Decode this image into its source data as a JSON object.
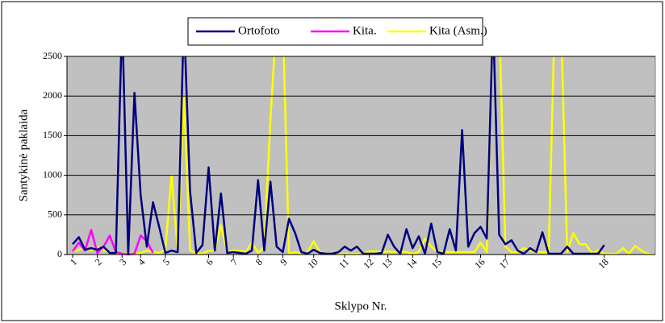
{
  "chart_data": {
    "type": "line",
    "y_label": "Santykinė paklaida",
    "x_label": "Sklypo Nr.",
    "ylim": [
      0,
      2500
    ],
    "yticks": [
      0,
      500,
      1000,
      1500,
      2000,
      2500
    ],
    "grid": true,
    "legend": "top",
    "categories": [
      "1",
      null,
      null,
      null,
      "2",
      null,
      null,
      null,
      "3",
      null,
      null,
      "4",
      null,
      null,
      null,
      "5",
      null,
      null,
      null,
      null,
      null,
      null,
      "6",
      null,
      null,
      null,
      "7",
      null,
      null,
      null,
      "8",
      null,
      null,
      null,
      "9",
      null,
      null,
      null,
      null,
      "10",
      null,
      null,
      null,
      null,
      "11",
      null,
      null,
      null,
      "12",
      null,
      null,
      "13",
      null,
      null,
      null,
      "14",
      null,
      null,
      null,
      "15",
      null,
      null,
      null,
      null,
      null,
      null,
      "16",
      null,
      null,
      null,
      "17",
      null,
      null,
      null,
      null,
      null,
      null,
      null,
      null,
      null,
      null,
      null,
      null,
      null,
      null,
      null,
      "18",
      null,
      null,
      null,
      null,
      null,
      null,
      null,
      null
    ],
    "series": [
      {
        "name": "Ortofoto",
        "color": "#000080",
        "values": [
          130,
          220,
          60,
          80,
          60,
          100,
          20,
          20,
          3000,
          0,
          2040,
          750,
          100,
          660,
          350,
          20,
          50,
          30,
          3000,
          800,
          20,
          120,
          1100,
          50,
          770,
          20,
          30,
          20,
          10,
          50,
          940,
          50,
          920,
          100,
          30,
          450,
          270,
          30,
          10,
          60,
          20,
          10,
          10,
          30,
          100,
          50,
          100,
          10,
          10,
          10,
          20,
          250,
          100,
          10,
          320,
          80,
          230,
          10,
          390,
          30,
          10,
          320,
          50,
          1570,
          100,
          270,
          350,
          200,
          3000,
          250,
          130,
          180,
          50,
          10,
          80,
          30,
          280,
          10,
          10,
          10,
          100,
          10,
          10,
          10,
          10,
          10,
          120,
          null,
          null,
          null,
          null,
          null,
          null,
          null,
          null
        ]
      },
      {
        "name": "Kita.",
        "color": "#ff00ff",
        "values": [
          40,
          150,
          50,
          310,
          20,
          100,
          240,
          30,
          10,
          0,
          10,
          240,
          170,
          20,
          null,
          null,
          null,
          null,
          null,
          null,
          null,
          null,
          null,
          null,
          null,
          null,
          null,
          null,
          null,
          null,
          null,
          null,
          null,
          null,
          null,
          null,
          null,
          null,
          null,
          null,
          null,
          null,
          null,
          null,
          null,
          null,
          null,
          null,
          null,
          null,
          null,
          null,
          null,
          null,
          null,
          null,
          null,
          null,
          null,
          null,
          null,
          null,
          null,
          null,
          null,
          null,
          null,
          null,
          null,
          null,
          null,
          null,
          null,
          null,
          null,
          null,
          null,
          null,
          null,
          null,
          null,
          null,
          null,
          null,
          null,
          null,
          null,
          null,
          null,
          null,
          null,
          null,
          null,
          null,
          null
        ]
      },
      {
        "name": "Kita (Asm.)",
        "color": "#ffff00",
        "values": [
          40,
          60,
          80,
          50,
          100,
          50,
          30,
          20,
          10,
          10,
          10,
          20,
          50,
          30,
          20,
          60,
          1000,
          50,
          2000,
          50,
          20,
          10,
          50,
          50,
          370,
          30,
          50,
          50,
          30,
          150,
          20,
          100,
          1700,
          3000,
          3000,
          10,
          30,
          10,
          30,
          170,
          30,
          10,
          10,
          10,
          10,
          10,
          10,
          10,
          40,
          40,
          30,
          40,
          30,
          40,
          30,
          10,
          30,
          200,
          100,
          30,
          30,
          30,
          30,
          30,
          30,
          30,
          150,
          30,
          3000,
          3000,
          100,
          30,
          30,
          80,
          50,
          30,
          30,
          30,
          3000,
          3000,
          30,
          270,
          130,
          130,
          20,
          50,
          10,
          10,
          10,
          80,
          10,
          110,
          50,
          10,
          0
        ]
      }
    ]
  }
}
